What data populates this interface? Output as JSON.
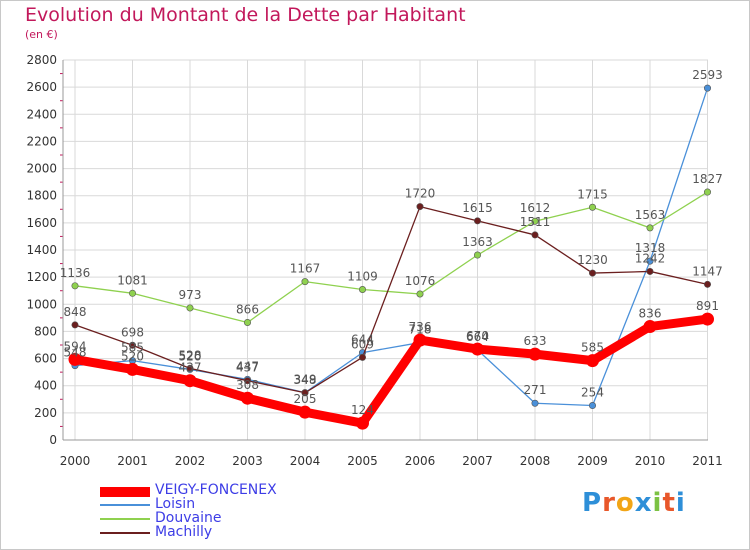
{
  "header": {
    "title": "Evolution du Montant de la Dette par Habitant",
    "subtitle": "(en €)"
  },
  "brand": {
    "text": "Proxiti",
    "colors": [
      "#2e8fd8",
      "#e8572a",
      "#f2a516",
      "#2e8fd8",
      "#7cc243",
      "#e8572a",
      "#2e8fd8"
    ]
  },
  "colors": {
    "accent": "#c2185b",
    "grid": "#d9d9d9",
    "axis_text": "#333333",
    "value_text": "#555555",
    "legend_text": "#3d3de6"
  },
  "chart_data": {
    "type": "line",
    "title": "Evolution du Montant de la Dette par Habitant",
    "subtitle": "(en €)",
    "x": [
      "2000",
      "2001",
      "2002",
      "2003",
      "2004",
      "2005",
      "2006",
      "2007",
      "2008",
      "2009",
      "2010",
      "2011"
    ],
    "ylim": [
      0,
      2800
    ],
    "yticks": [
      0,
      200,
      400,
      600,
      800,
      1000,
      1200,
      1400,
      1600,
      1800,
      2000,
      2200,
      2400,
      2600,
      2800
    ],
    "grid": true,
    "legend_position": "bottom-left",
    "series": [
      {
        "name": "VEIGY-FONCENEX",
        "color": "#ff0000",
        "values": [
          594,
          520,
          437,
          308,
          205,
          124,
          736,
          670,
          633,
          585,
          836,
          891
        ]
      },
      {
        "name": "Loisin",
        "color": "#4a90d9",
        "values": [
          548,
          585,
          520,
          447,
          349,
          644,
          718,
          664,
          271,
          254,
          1318,
          2593
        ]
      },
      {
        "name": "Douvaine",
        "color": "#8fd14f",
        "values": [
          1136,
          1081,
          973,
          866,
          1167,
          1109,
          1076,
          1363,
          1612,
          1715,
          1563,
          1827
        ]
      },
      {
        "name": "Machilly",
        "color": "#6b1f1f",
        "values": [
          848,
          698,
          528,
          437,
          348,
          609,
          1720,
          1615,
          1511,
          1230,
          1242,
          1147
        ]
      }
    ]
  }
}
